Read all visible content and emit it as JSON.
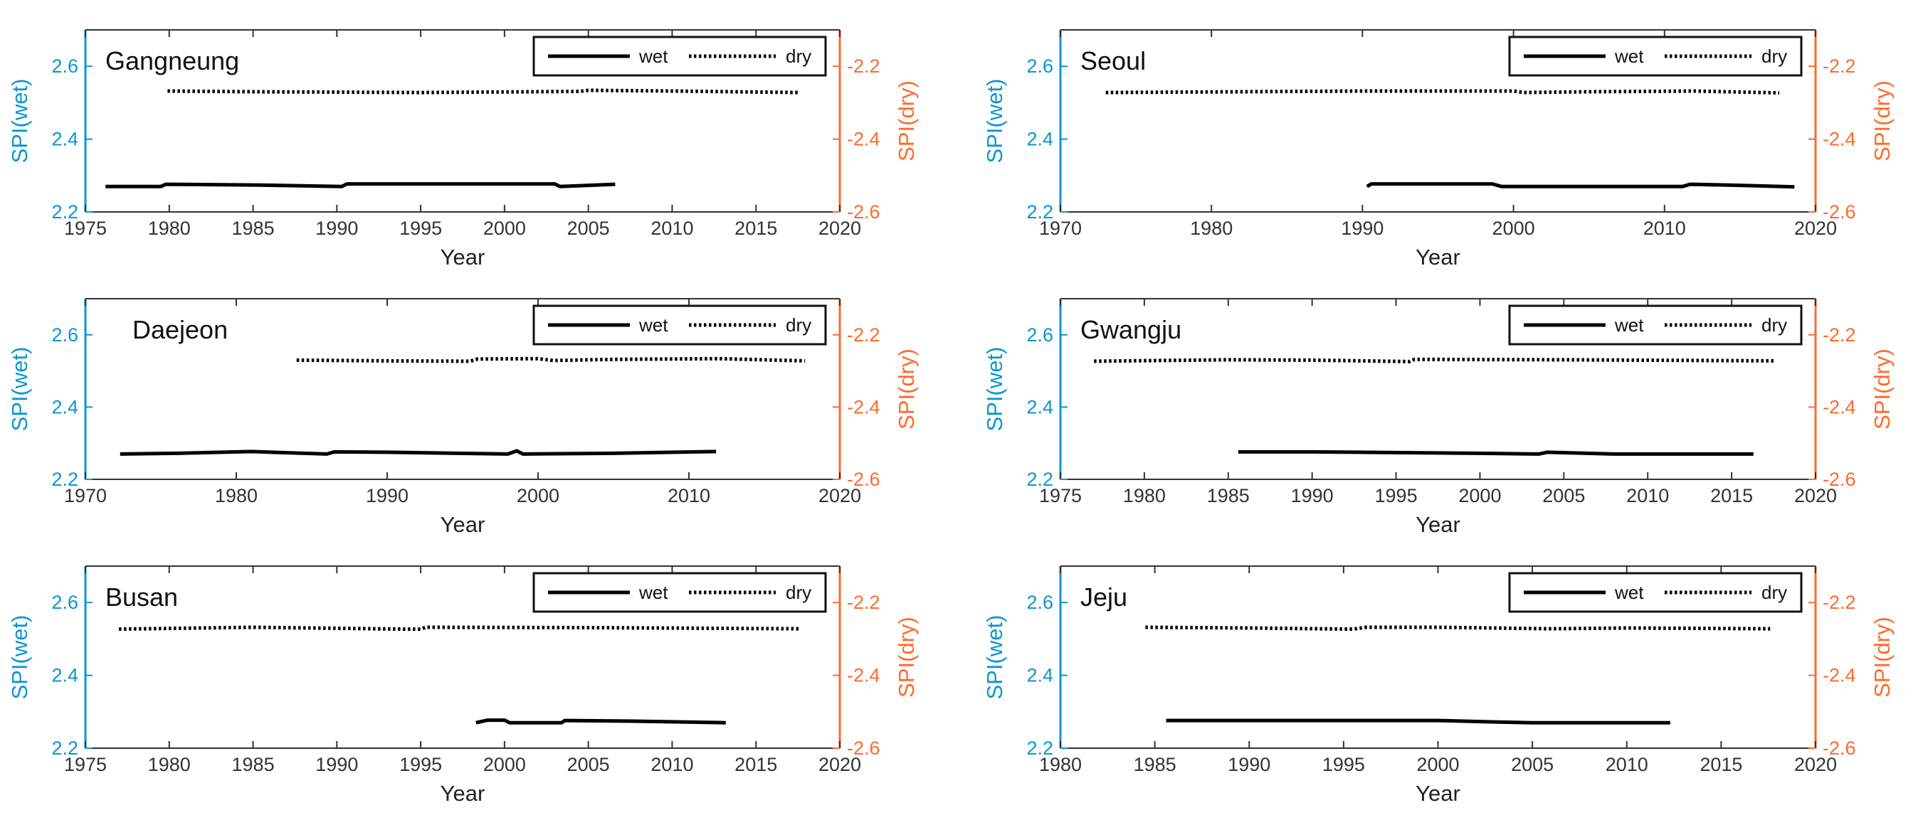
{
  "chart_data": [
    {
      "type": "line",
      "title": "Gangneung",
      "xlabel": "Year",
      "ylabel_left": "SPI(wet)",
      "ylabel_right": "SPI(dry)",
      "xlim": [
        1975,
        2020
      ],
      "xticks": [
        1975,
        1980,
        1985,
        1990,
        1995,
        2000,
        2005,
        2010,
        2015,
        2020
      ],
      "ylim_left": [
        2.2,
        2.7
      ],
      "yticks_left": [
        2.2,
        2.4,
        2.6
      ],
      "ylim_right": [
        -2.6,
        -2.1
      ],
      "yticks_right": [
        -2.6,
        -2.4,
        -2.2
      ],
      "legend": {
        "wet": "wet",
        "dry": "dry",
        "position": "top-right"
      },
      "series": [
        {
          "name": "wet",
          "axis": "left",
          "style": "solid",
          "x": [
            1976.2,
            1979.5,
            1979.8,
            1985,
            1990.3,
            1990.6,
            1995,
            2003,
            2003.3,
            2006.6
          ],
          "y": [
            2.27,
            2.27,
            2.276,
            2.274,
            2.27,
            2.277,
            2.277,
            2.277,
            2.27,
            2.276
          ]
        },
        {
          "name": "dry",
          "axis": "right",
          "style": "dotted",
          "x": [
            1979.9,
            1985,
            1995,
            2004.5,
            2005,
            2010,
            2017.6
          ],
          "y": [
            -2.268,
            -2.27,
            -2.272,
            -2.269,
            -2.266,
            -2.268,
            -2.272
          ]
        }
      ]
    },
    {
      "type": "line",
      "title": "Seoul",
      "xlabel": "Year",
      "ylabel_left": "SPI(wet)",
      "ylabel_right": "SPI(dry)",
      "xlim": [
        1970,
        2020
      ],
      "xticks": [
        1970,
        1980,
        1990,
        2000,
        2010,
        2020
      ],
      "ylim_left": [
        2.2,
        2.7
      ],
      "yticks_left": [
        2.2,
        2.4,
        2.6
      ],
      "ylim_right": [
        -2.6,
        -2.1
      ],
      "yticks_right": [
        -2.6,
        -2.4,
        -2.2
      ],
      "legend": {
        "wet": "wet",
        "dry": "dry",
        "position": "top-right"
      },
      "series": [
        {
          "name": "wet",
          "axis": "left",
          "style": "solid",
          "x": [
            1990.3,
            1990.6,
            1998.6,
            1999.2,
            2011.2,
            2011.7,
            2015,
            2018.6
          ],
          "y": [
            2.27,
            2.277,
            2.277,
            2.27,
            2.27,
            2.276,
            2.273,
            2.269
          ]
        },
        {
          "name": "dry",
          "axis": "right",
          "style": "dotted",
          "x": [
            1973,
            1982,
            1990,
            2000,
            2000.7,
            2005,
            2012,
            2017.6
          ],
          "y": [
            -2.272,
            -2.27,
            -2.268,
            -2.268,
            -2.272,
            -2.27,
            -2.268,
            -2.273
          ]
        }
      ]
    },
    {
      "type": "line",
      "title": "Daejeon",
      "xlabel": "Year",
      "ylabel_left": "SPI(wet)",
      "ylabel_right": "SPI(dry)",
      "xlim": [
        1970,
        2020
      ],
      "xticks": [
        1970,
        1980,
        1990,
        2000,
        2010,
        2020
      ],
      "ylim_left": [
        2.2,
        2.7
      ],
      "yticks_left": [
        2.2,
        2.4,
        2.6
      ],
      "ylim_right": [
        -2.6,
        -2.1
      ],
      "yticks_right": [
        -2.6,
        -2.4,
        -2.2
      ],
      "legend": {
        "wet": "wet",
        "dry": "dry",
        "position": "top-right"
      },
      "series": [
        {
          "name": "wet",
          "axis": "left",
          "style": "solid",
          "x": [
            1972.3,
            1976,
            1981,
            1986,
            1986.5,
            1990,
            1998,
            1998.6,
            1999,
            2005,
            2011.8
          ],
          "y": [
            2.27,
            2.272,
            2.277,
            2.27,
            2.276,
            2.275,
            2.27,
            2.279,
            2.27,
            2.272,
            2.277
          ]
        },
        {
          "name": "dry",
          "axis": "right",
          "style": "dotted",
          "x": [
            1984,
            1990,
            1995.5,
            1996,
            2000,
            2001,
            2005,
            2012,
            2017.7
          ],
          "y": [
            -2.27,
            -2.272,
            -2.273,
            -2.267,
            -2.266,
            -2.271,
            -2.268,
            -2.266,
            -2.272
          ]
        }
      ]
    },
    {
      "type": "line",
      "title": "Gwangju",
      "xlabel": "Year",
      "ylabel_left": "SPI(wet)",
      "ylabel_right": "SPI(dry)",
      "xlim": [
        1975,
        2020
      ],
      "xticks": [
        1975,
        1980,
        1985,
        1990,
        1995,
        2000,
        2005,
        2010,
        2015,
        2020
      ],
      "ylim_left": [
        2.2,
        2.7
      ],
      "yticks_left": [
        2.2,
        2.4,
        2.6
      ],
      "ylim_right": [
        -2.6,
        -2.1
      ],
      "yticks_right": [
        -2.6,
        -2.4,
        -2.2
      ],
      "legend": {
        "wet": "wet",
        "dry": "dry",
        "position": "top-right"
      },
      "series": [
        {
          "name": "wet",
          "axis": "left",
          "style": "solid",
          "x": [
            1985.6,
            1990,
            1995,
            2000,
            2003.5,
            2004,
            2008,
            2016.3
          ],
          "y": [
            2.276,
            2.276,
            2.274,
            2.272,
            2.27,
            2.275,
            2.27,
            2.27
          ]
        },
        {
          "name": "dry",
          "axis": "right",
          "style": "dotted",
          "x": [
            1977,
            1985,
            1990,
            1995.8,
            1996.1,
            2005,
            2017.6
          ],
          "y": [
            -2.273,
            -2.269,
            -2.27,
            -2.274,
            -2.268,
            -2.269,
            -2.272
          ]
        }
      ]
    },
    {
      "type": "line",
      "title": "Busan",
      "xlabel": "Year",
      "ylabel_left": "SPI(wet)",
      "ylabel_right": "SPI(dry)",
      "xlim": [
        1975,
        2020
      ],
      "xticks": [
        1975,
        1980,
        1985,
        1990,
        1995,
        2000,
        2005,
        2010,
        2015,
        2020
      ],
      "ylim_left": [
        2.2,
        2.7
      ],
      "yticks_left": [
        2.2,
        2.4,
        2.6
      ],
      "ylim_right": [
        -2.6,
        -2.1
      ],
      "yticks_right": [
        -2.6,
        -2.4,
        -2.2
      ],
      "legend": {
        "wet": "wet",
        "dry": "dry",
        "position": "top-right"
      },
      "series": [
        {
          "name": "wet",
          "axis": "left",
          "style": "solid",
          "x": [
            1998.3,
            1999,
            2000,
            2000.3,
            2003.4,
            2003.6,
            2008,
            2013.2
          ],
          "y": [
            2.27,
            2.277,
            2.277,
            2.27,
            2.27,
            2.276,
            2.274,
            2.27
          ]
        },
        {
          "name": "dry",
          "axis": "right",
          "style": "dotted",
          "x": [
            1977,
            1985,
            1994,
            1995,
            1995.3,
            2005,
            2017.6
          ],
          "y": [
            -2.273,
            -2.268,
            -2.273,
            -2.273,
            -2.268,
            -2.269,
            -2.272
          ]
        }
      ]
    },
    {
      "type": "line",
      "title": "Jeju",
      "xlabel": "Year",
      "ylabel_left": "SPI(wet)",
      "ylabel_right": "SPI(dry)",
      "xlim": [
        1980,
        2020
      ],
      "xticks": [
        1980,
        1985,
        1990,
        1995,
        2000,
        2005,
        2010,
        2015,
        2020
      ],
      "ylim_left": [
        2.2,
        2.7
      ],
      "yticks_left": [
        2.2,
        2.4,
        2.6
      ],
      "ylim_right": [
        -2.6,
        -2.1
      ],
      "yticks_right": [
        -2.6,
        -2.4,
        -2.2
      ],
      "legend": {
        "wet": "wet",
        "dry": "dry",
        "position": "top-right"
      },
      "series": [
        {
          "name": "wet",
          "axis": "left",
          "style": "solid",
          "x": [
            1985.6,
            1990,
            2000,
            2003,
            2005,
            2012.3
          ],
          "y": [
            2.276,
            2.276,
            2.276,
            2.272,
            2.27,
            2.27
          ]
        },
        {
          "name": "dry",
          "axis": "right",
          "style": "dotted",
          "x": [
            1984.5,
            1990,
            1995.5,
            1996.2,
            2000,
            2006,
            2010,
            2017.6
          ],
          "y": [
            -2.268,
            -2.27,
            -2.273,
            -2.268,
            -2.268,
            -2.272,
            -2.27,
            -2.272
          ]
        }
      ]
    }
  ],
  "colors": {
    "left_axis": "#0a96d2",
    "right_axis": "#ff6a2a",
    "series": "#000000"
  }
}
